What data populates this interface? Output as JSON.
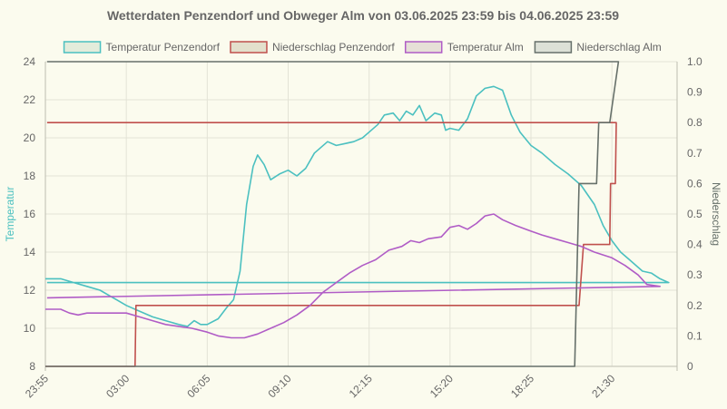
{
  "chart_data": {
    "type": "line",
    "title": "Wetterdaten Penzendorf und Obweger Alm von 03.06.2025 23:59 bis 04.06.2025 23:59",
    "x_start": "23:55",
    "x_end": "23:59",
    "x_ticks": [
      "23:55",
      "03:00",
      "06:05",
      "09:10",
      "12:15",
      "15:20",
      "18:25",
      "21:30"
    ],
    "y_left": {
      "label": "Temperatur",
      "min": 8,
      "max": 24,
      "ticks": [
        8,
        10,
        12,
        14,
        16,
        18,
        20,
        22,
        24
      ]
    },
    "y_right": {
      "label": "Niederschlag",
      "min": 0,
      "max": 1.0,
      "ticks": [
        "0",
        "0.1",
        "0.2",
        "0.3",
        "0.4",
        "0.5",
        "0.6",
        "0.7",
        "0.8",
        "0.9",
        "1.0"
      ]
    },
    "grid": true,
    "legend_position": "top",
    "series": [
      {
        "name": "Temperatur Penzendorf",
        "axis": "left",
        "color": "#4bc0c0",
        "fill": "#e3ecdb",
        "points": [
          [
            "23:55",
            12.6
          ],
          [
            "00:30",
            12.6
          ],
          [
            "01:00",
            12.4
          ],
          [
            "01:30",
            12.2
          ],
          [
            "02:00",
            12.0
          ],
          [
            "02:30",
            11.6
          ],
          [
            "03:00",
            11.2
          ],
          [
            "03:30",
            10.9
          ],
          [
            "04:00",
            10.6
          ],
          [
            "04:30",
            10.4
          ],
          [
            "05:00",
            10.2
          ],
          [
            "05:20",
            10.1
          ],
          [
            "05:35",
            10.4
          ],
          [
            "05:50",
            10.2
          ],
          [
            "06:05",
            10.2
          ],
          [
            "06:30",
            10.5
          ],
          [
            "06:50",
            11.1
          ],
          [
            "07:05",
            11.5
          ],
          [
            "07:20",
            13.0
          ],
          [
            "07:35",
            16.5
          ],
          [
            "07:50",
            18.5
          ],
          [
            "08:00",
            19.1
          ],
          [
            "08:15",
            18.6
          ],
          [
            "08:30",
            17.8
          ],
          [
            "08:50",
            18.1
          ],
          [
            "09:10",
            18.3
          ],
          [
            "09:30",
            18.0
          ],
          [
            "09:50",
            18.4
          ],
          [
            "10:10",
            19.2
          ],
          [
            "10:40",
            19.8
          ],
          [
            "11:00",
            19.6
          ],
          [
            "11:20",
            19.7
          ],
          [
            "11:40",
            19.8
          ],
          [
            "12:00",
            20.0
          ],
          [
            "12:15",
            20.3
          ],
          [
            "12:35",
            20.7
          ],
          [
            "12:50",
            21.2
          ],
          [
            "13:10",
            21.3
          ],
          [
            "13:25",
            20.9
          ],
          [
            "13:40",
            21.4
          ],
          [
            "13:55",
            21.2
          ],
          [
            "14:10",
            21.7
          ],
          [
            "14:25",
            20.9
          ],
          [
            "14:45",
            21.3
          ],
          [
            "15:00",
            21.2
          ],
          [
            "15:10",
            20.4
          ],
          [
            "15:20",
            20.5
          ],
          [
            "15:40",
            20.4
          ],
          [
            "16:00",
            21.0
          ],
          [
            "16:20",
            22.2
          ],
          [
            "16:40",
            22.6
          ],
          [
            "17:00",
            22.7
          ],
          [
            "17:20",
            22.5
          ],
          [
            "17:40",
            21.2
          ],
          [
            "18:00",
            20.3
          ],
          [
            "18:25",
            19.6
          ],
          [
            "18:50",
            19.2
          ],
          [
            "19:20",
            18.6
          ],
          [
            "19:50",
            18.1
          ],
          [
            "20:20",
            17.5
          ],
          [
            "20:50",
            16.5
          ],
          [
            "21:10",
            15.4
          ],
          [
            "21:30",
            14.6
          ],
          [
            "21:50",
            14.0
          ],
          [
            "22:10",
            13.6
          ],
          [
            "22:40",
            13.0
          ],
          [
            "23:00",
            12.9
          ],
          [
            "23:20",
            12.6
          ],
          [
            "23:40",
            12.4
          ],
          [
            "23:59",
            12.4
          ]
        ]
      },
      {
        "name": "Niederschlag Penzendorf",
        "axis": "right",
        "color": "#c0504d",
        "fill": "#e3e0cc",
        "points": [
          [
            "23:55",
            0
          ],
          [
            "03:20",
            0
          ],
          [
            "03:22",
            0.2
          ],
          [
            "20:15",
            0.2
          ],
          [
            "20:25",
            0.4
          ],
          [
            "21:25",
            0.4
          ],
          [
            "21:27",
            0.6
          ],
          [
            "21:38",
            0.6
          ],
          [
            "21:40",
            0.8
          ],
          [
            "23:59",
            0.8
          ]
        ]
      },
      {
        "name": "Temperatur Alm",
        "axis": "left",
        "color": "#b05cc6",
        "fill": "#e6e0d7",
        "points": [
          [
            "23:55",
            11.0
          ],
          [
            "00:30",
            11.0
          ],
          [
            "00:50",
            10.8
          ],
          [
            "01:10",
            10.7
          ],
          [
            "01:30",
            10.8
          ],
          [
            "02:00",
            10.8
          ],
          [
            "02:30",
            10.8
          ],
          [
            "03:00",
            10.8
          ],
          [
            "03:30",
            10.6
          ],
          [
            "04:00",
            10.4
          ],
          [
            "04:30",
            10.2
          ],
          [
            "05:00",
            10.1
          ],
          [
            "05:30",
            10.0
          ],
          [
            "06:05",
            9.8
          ],
          [
            "06:30",
            9.6
          ],
          [
            "07:00",
            9.5
          ],
          [
            "07:30",
            9.5
          ],
          [
            "08:00",
            9.7
          ],
          [
            "08:30",
            10.0
          ],
          [
            "09:00",
            10.3
          ],
          [
            "09:30",
            10.7
          ],
          [
            "10:00",
            11.2
          ],
          [
            "10:30",
            11.9
          ],
          [
            "11:00",
            12.4
          ],
          [
            "11:30",
            12.9
          ],
          [
            "12:00",
            13.3
          ],
          [
            "12:30",
            13.6
          ],
          [
            "13:00",
            14.1
          ],
          [
            "13:30",
            14.3
          ],
          [
            "13:50",
            14.6
          ],
          [
            "14:10",
            14.5
          ],
          [
            "14:30",
            14.7
          ],
          [
            "15:00",
            14.8
          ],
          [
            "15:20",
            15.3
          ],
          [
            "15:40",
            15.4
          ],
          [
            "16:00",
            15.2
          ],
          [
            "16:20",
            15.5
          ],
          [
            "16:40",
            15.9
          ],
          [
            "17:00",
            16.0
          ],
          [
            "17:20",
            15.7
          ],
          [
            "17:50",
            15.4
          ],
          [
            "18:25",
            15.1
          ],
          [
            "18:50",
            14.9
          ],
          [
            "19:20",
            14.7
          ],
          [
            "19:50",
            14.5
          ],
          [
            "20:20",
            14.3
          ],
          [
            "20:50",
            14.0
          ],
          [
            "21:30",
            13.7
          ],
          [
            "22:00",
            13.3
          ],
          [
            "22:30",
            12.8
          ],
          [
            "22:50",
            12.3
          ],
          [
            "23:20",
            12.2
          ],
          [
            "23:59",
            11.6
          ]
        ]
      },
      {
        "name": "Niederschlag Alm",
        "axis": "right",
        "color": "#66706a",
        "fill": "#dde1d7",
        "points": [
          [
            "23:55",
            0
          ],
          [
            "20:05",
            0
          ],
          [
            "20:15",
            0.6
          ],
          [
            "20:55",
            0.6
          ],
          [
            "21:00",
            0.8
          ],
          [
            "21:25",
            0.8
          ],
          [
            "21:45",
            1.0
          ],
          [
            "23:59",
            1.0
          ]
        ]
      }
    ]
  }
}
